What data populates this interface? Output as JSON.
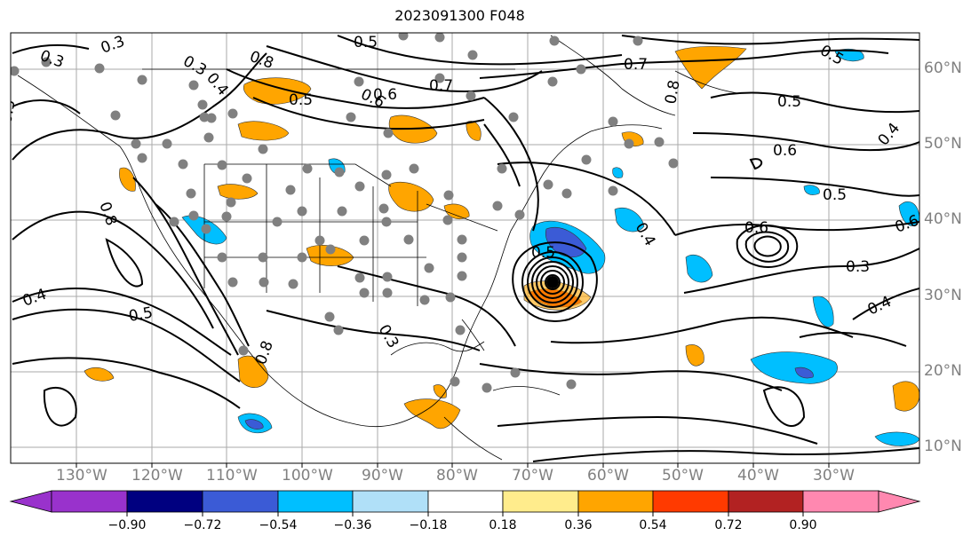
{
  "title": "2023091300 F048",
  "lat_labels": [
    "60°N",
    "50°N",
    "40°N",
    "30°N",
    "20°N",
    "10°N"
  ],
  "lon_labels": [
    "130°W",
    "120°W",
    "110°W",
    "100°W",
    "90°W",
    "80°W",
    "70°W",
    "60°W",
    "50°W",
    "40°W",
    "30°W"
  ],
  "contour_labels": [
    "0.3",
    "0.3",
    "0.8",
    "0.4",
    "0.3",
    "0.5",
    "0.6",
    "0.7",
    "0.8",
    "0.5",
    "0.7",
    "0.6",
    "0.5",
    "0.5",
    "0.4",
    "0.6",
    "0.5",
    "0.3",
    "0.4",
    "0.4",
    "0.5",
    "0.3",
    "0.5",
    "0.6",
    "0.6",
    "0.5",
    "0.4",
    "0.8",
    "0.8"
  ],
  "colorbar": {
    "ticks": [
      "−0.90",
      "−0.72",
      "−0.54",
      "−0.36",
      "−0.18",
      "0.18",
      "0.36",
      "0.54",
      "0.72",
      "0.90"
    ],
    "colors": [
      "#9932cc",
      "#000080",
      "#3b5bd6",
      "#00bfff",
      "#b0e0f8",
      "#ffffff",
      "#ffec8c",
      "#ffa500",
      "#ff3a00",
      "#b22222",
      "#ff88b0",
      "#ff88b0"
    ]
  }
}
